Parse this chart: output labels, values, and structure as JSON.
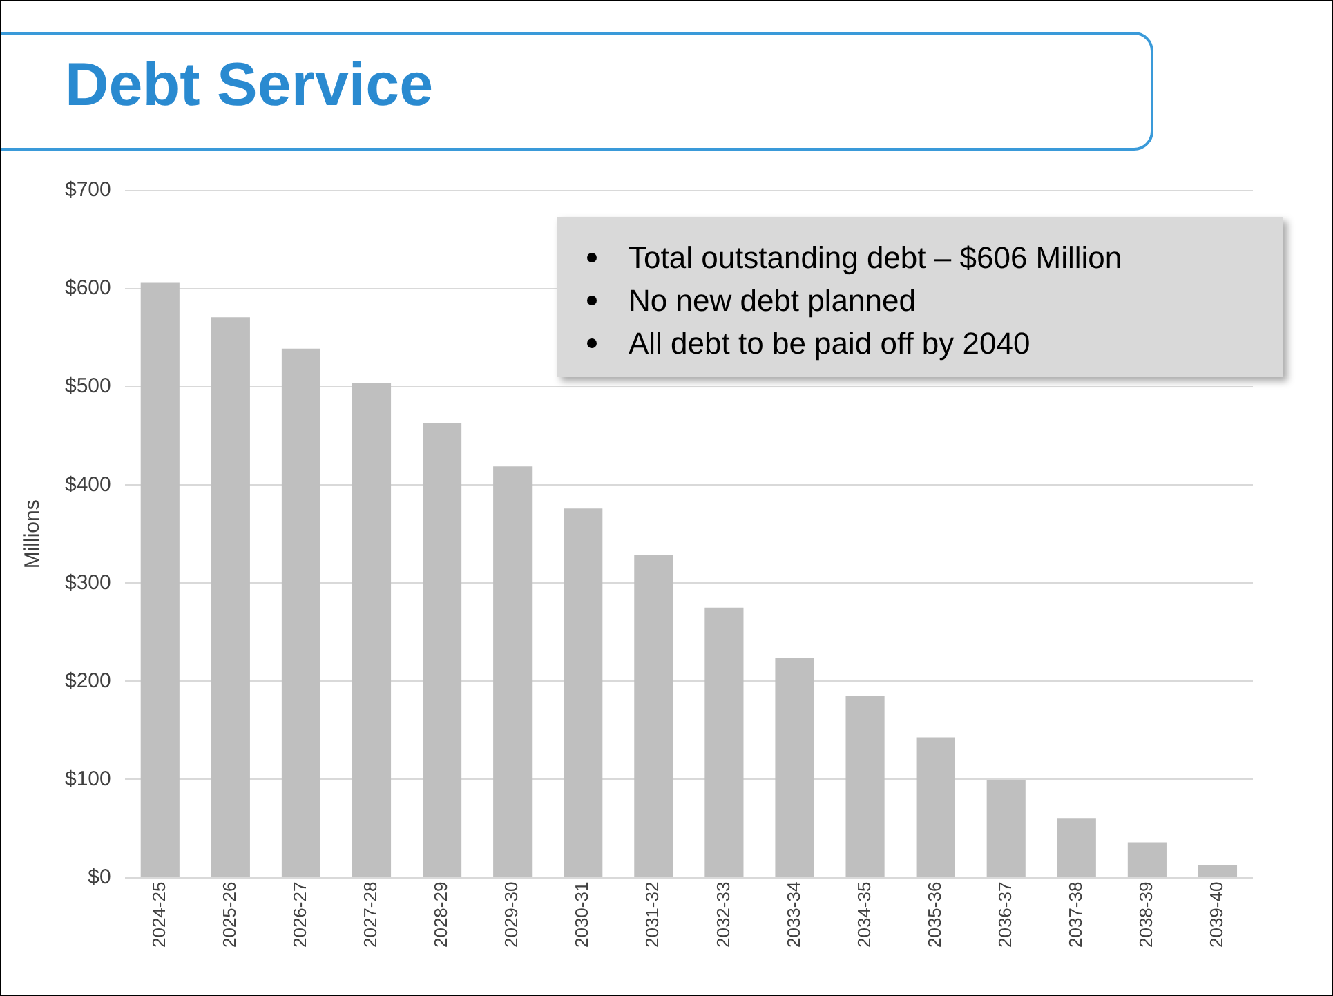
{
  "chart_data": {
    "type": "bar",
    "title": "Debt Service",
    "ylabel": "Millions",
    "categories": [
      "2024-25",
      "2025-26",
      "2026-27",
      "2027-28",
      "2028-29",
      "2029-30",
      "2030-31",
      "2031-32",
      "2032-33",
      "2033-34",
      "2034-35",
      "2035-36",
      "2036-37",
      "2037-38",
      "2038-39",
      "2039-40"
    ],
    "values": [
      606,
      571,
      539,
      504,
      463,
      419,
      376,
      329,
      275,
      224,
      185,
      143,
      99,
      60,
      36,
      13
    ],
    "color": "#bfbfbf",
    "ylim": [
      0,
      700
    ],
    "yticks": [
      {
        "value": 0,
        "label": "$0"
      },
      {
        "value": 100,
        "label": "$100"
      },
      {
        "value": 200,
        "label": "$200"
      },
      {
        "value": 300,
        "label": "$300"
      },
      {
        "value": 400,
        "label": "$400"
      },
      {
        "value": 500,
        "label": "$500"
      },
      {
        "value": 600,
        "label": "$600"
      },
      {
        "value": 700,
        "label": "$700"
      }
    ],
    "grid": "y",
    "legend": false,
    "annotations": [
      "Total outstanding debt – $606 Million",
      "No new debt planned",
      "All debt to be paid off by 2040"
    ]
  }
}
